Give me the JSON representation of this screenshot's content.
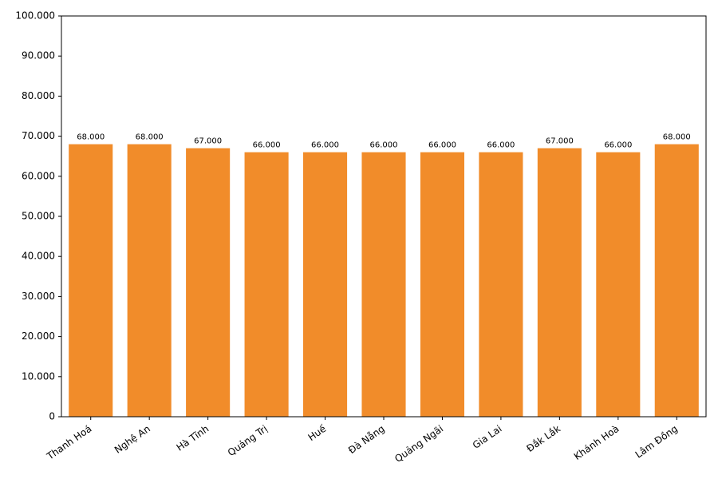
{
  "chart_data": {
    "type": "bar",
    "categories": [
      "Thanh Hoá",
      "Nghệ An",
      "Hà Tĩnh",
      "Quảng Trị",
      "Huế",
      "Đà Nẵng",
      "Quảng Ngãi",
      "Gia Lai",
      "Đắk Lắk",
      "Khánh Hoà",
      "Lâm Đồng"
    ],
    "values": [
      68000,
      68000,
      67000,
      66000,
      66000,
      66000,
      66000,
      66000,
      67000,
      66000,
      68000
    ],
    "value_labels": [
      "68.000",
      "68.000",
      "67.000",
      "66.000",
      "66.000",
      "66.000",
      "66.000",
      "66.000",
      "67.000",
      "66.000",
      "68.000"
    ],
    "color": "#f18c2a",
    "ylim": [
      0,
      100000
    ],
    "yticks": [
      0,
      {
        "value": 10000,
        "label": "10.000"
      },
      {
        "value": 20000,
        "label": "20.000"
      },
      {
        "value": 30000,
        "label": "30.000"
      },
      {
        "value": 40000,
        "label": "40.000"
      },
      {
        "value": 50000,
        "label": "50.000"
      },
      {
        "value": 60000,
        "label": "60.000"
      },
      {
        "value": 70000,
        "label": "70.000"
      },
      {
        "value": 80000,
        "label": "80.000"
      },
      {
        "value": 90000,
        "label": "90.000"
      },
      {
        "value": 100000,
        "label": "100.000"
      }
    ],
    "grid": false
  }
}
